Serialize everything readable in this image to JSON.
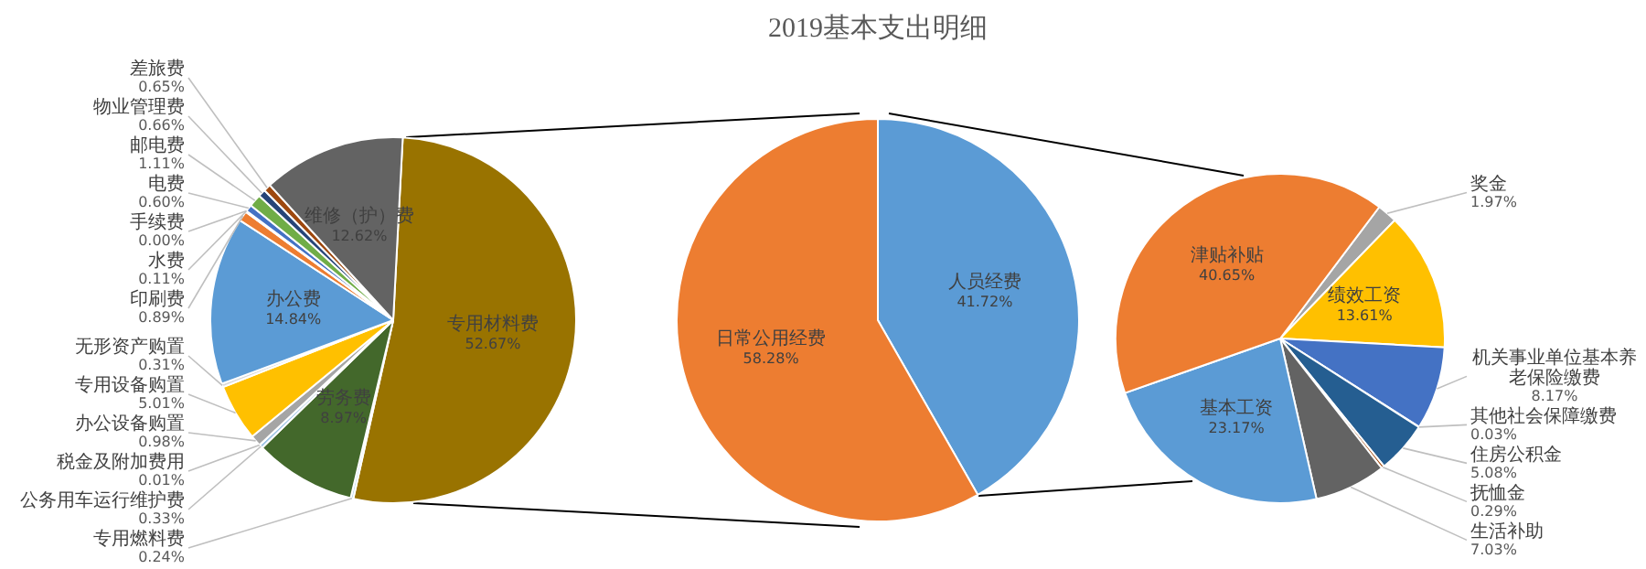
{
  "chart_data": [
    {
      "type": "pie",
      "categories": [
        "专用材料费",
        "专用燃料费",
        "劳务费",
        "公务用车运行维护费",
        "税金及附加费用",
        "办公设备购置",
        "专用设备购置",
        "无形资产购置",
        "办公费",
        "印刷费",
        "水费",
        "手续费",
        "电费",
        "邮电费",
        "物业管理费",
        "差旅费",
        "维修（护）费"
      ],
      "values": [
        52.67,
        0.24,
        8.97,
        0.33,
        0.01,
        0.98,
        5.01,
        0.31,
        14.84,
        0.89,
        0.11,
        0.0,
        0.6,
        1.11,
        0.66,
        0.65,
        12.62
      ],
      "colors": [
        "#997300",
        "#bdd7ee",
        "#43682b",
        "#9dc3e6",
        "#7f7f7f",
        "#a5a5a5",
        "#ffc000",
        "#d9d9d9",
        "#5b9bd5",
        "#ed7d31",
        "#a5a5a5",
        "#ffc000",
        "#4472c4",
        "#70ad47",
        "#264478",
        "#9e480e",
        "#636363"
      ],
      "value_labels": [
        "52.67%",
        "0.24%",
        "8.97%",
        "0.33%",
        "0.01%",
        "0.98%",
        "5.01%",
        "0.31%",
        "14.84%",
        "0.89%",
        "0.11%",
        "0.00%",
        "0.60%",
        "1.11%",
        "0.66%",
        "0.65%",
        "12.62%"
      ]
    },
    {
      "type": "pie",
      "title": "2019基本支出明细",
      "categories": [
        "人员经费",
        "日常公用经费"
      ],
      "values": [
        41.72,
        58.28
      ],
      "colors": [
        "#5b9bd5",
        "#ed7d31"
      ],
      "value_labels": [
        "41.72%",
        "58.28%"
      ]
    },
    {
      "type": "pie",
      "categories": [
        "奖金",
        "绩效工资",
        "机关事业单位基本养老保险缴费",
        "其他社会保障缴费",
        "住房公积金",
        "抚恤金",
        "生活补助",
        "基本工资",
        "津贴补贴"
      ],
      "values": [
        1.97,
        13.61,
        8.17,
        0.03,
        5.08,
        0.29,
        7.03,
        23.17,
        40.65
      ],
      "colors": [
        "#a5a5a5",
        "#ffc000",
        "#4472c4",
        "#70ad47",
        "#255e91",
        "#9e480e",
        "#636363",
        "#5b9bd5",
        "#ed7d31"
      ],
      "value_labels": [
        "1.97%",
        "13.61%",
        "8.17%",
        "0.03%",
        "5.08%",
        "0.29%",
        "7.03%",
        "23.17%",
        "40.65%"
      ]
    }
  ]
}
